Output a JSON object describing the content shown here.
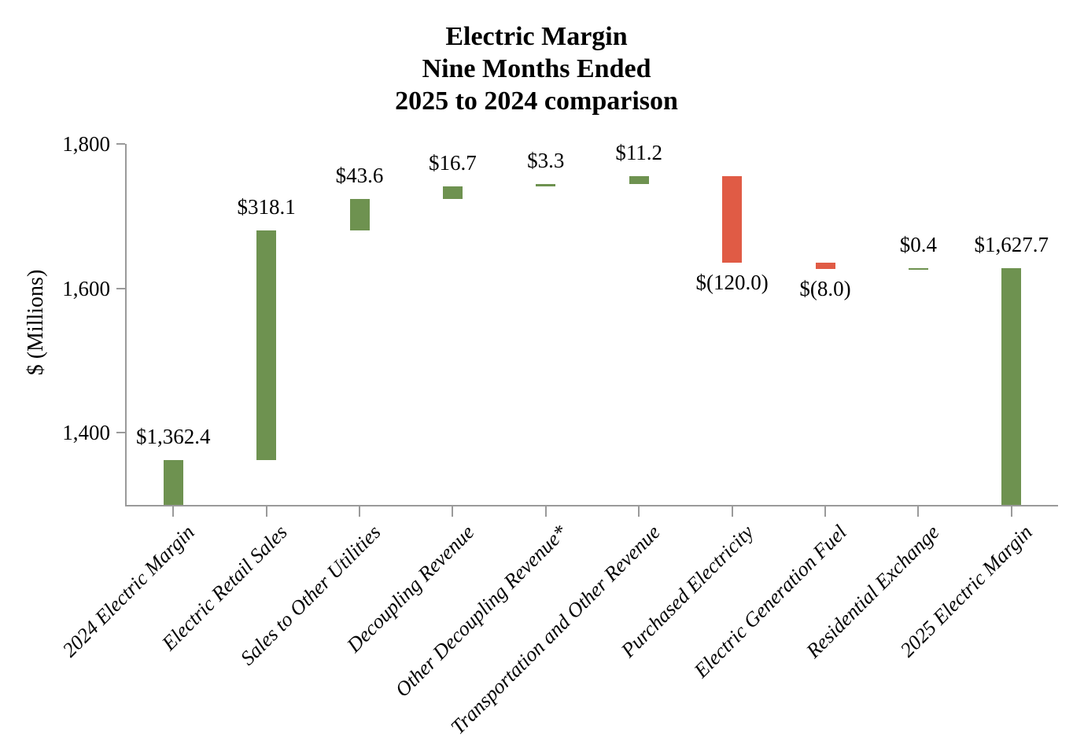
{
  "chart_data": {
    "type": "bar",
    "subtype": "waterfall",
    "title_lines": [
      "Electric Margin",
      "Nine Months Ended",
      "2025 to 2024 comparison"
    ],
    "title": "Electric Margin Nine Months Ended 2025 to 2024 comparison",
    "xlabel": "",
    "ylabel": "$ (Millions)",
    "ylim": [
      1300,
      1800
    ],
    "grid": false,
    "legend_position": "none",
    "yticks": [
      {
        "value": 1800,
        "label": "1,800"
      },
      {
        "value": 1600,
        "label": "1,600"
      },
      {
        "value": 1400,
        "label": "1,400"
      }
    ],
    "colors": {
      "increase": "#6E9250",
      "decrease": "#E05B45",
      "total": "#6E9250",
      "axis": "#9A9A9A",
      "text": "#000000"
    },
    "points": [
      {
        "category": "2024 Electric Margin",
        "value": 1362.4,
        "kind": "total",
        "label": "$1,362.4"
      },
      {
        "category": "Electric Retail Sales",
        "value": 318.1,
        "kind": "increase",
        "label": "$318.1"
      },
      {
        "category": "Sales to Other Utilities",
        "value": 43.6,
        "kind": "increase",
        "label": "$43.6"
      },
      {
        "category": "Decoupling Revenue",
        "value": 16.7,
        "kind": "increase",
        "label": "$16.7"
      },
      {
        "category": "Other Decoupling Revenue*",
        "value": 3.3,
        "kind": "increase",
        "label": "$3.3"
      },
      {
        "category": "Transportation and Other Revenue",
        "value": 11.2,
        "kind": "increase",
        "label": "$11.2"
      },
      {
        "category": "Purchased Electricity",
        "value": -120.0,
        "kind": "decrease",
        "label": "$(120.0)"
      },
      {
        "category": "Electric Generation Fuel",
        "value": -8.0,
        "kind": "decrease",
        "label": "$(8.0)"
      },
      {
        "category": "Residential Exchange",
        "value": 0.4,
        "kind": "increase",
        "label": "$0.4"
      },
      {
        "category": "2025 Electric Margin",
        "value": 1627.7,
        "kind": "total",
        "label": "$1,627.7"
      }
    ]
  }
}
